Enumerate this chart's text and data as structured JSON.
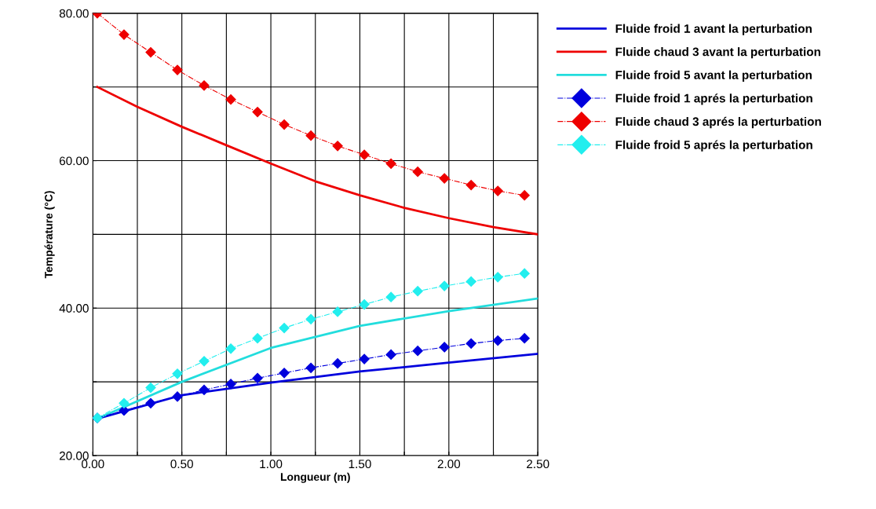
{
  "chart_data": {
    "type": "line",
    "xlabel": "Longueur (m)",
    "ylabel": "Température (°C)",
    "xlim": [
      0,
      2.5
    ],
    "ylim": [
      20,
      80
    ],
    "xticks": [
      {
        "value": 0,
        "label": "0.00"
      },
      {
        "value": 0.25,
        "label": null
      },
      {
        "value": 0.5,
        "label": "0.50"
      },
      {
        "value": 0.75,
        "label": null
      },
      {
        "value": 1.0,
        "label": "1.00"
      },
      {
        "value": 1.25,
        "label": null
      },
      {
        "value": 1.5,
        "label": "1.50"
      },
      {
        "value": 1.75,
        "label": null
      },
      {
        "value": 2.0,
        "label": "2.00"
      },
      {
        "value": 2.25,
        "label": null
      },
      {
        "value": 2.5,
        "label": "2.50"
      }
    ],
    "yticks": [
      {
        "value": 20,
        "label": "20.00"
      },
      {
        "value": 30,
        "label": null
      },
      {
        "value": 40,
        "label": "40.00"
      },
      {
        "value": 50,
        "label": null
      },
      {
        "value": 60,
        "label": "60.00"
      },
      {
        "value": 70,
        "label": null
      },
      {
        "value": 80,
        "label": "80.00"
      }
    ],
    "grid": true,
    "legend": "top right",
    "series": [
      {
        "name": "Fluide froid 1 avant la perturbation",
        "color": "#0000dd",
        "marker": "none",
        "line_style": "solid",
        "x": [
          0.025,
          0.5,
          1.0,
          1.5,
          2.0,
          2.5
        ],
        "values": [
          25.0,
          28.2,
          29.9,
          31.4,
          32.6,
          33.8
        ]
      },
      {
        "name": "Fluide chaud 3 avant la perturbation",
        "color": "#ee0000",
        "marker": "none",
        "line_style": "solid",
        "x": [
          0.025,
          0.25,
          0.5,
          0.75,
          1.0,
          1.25,
          1.5,
          1.75,
          2.0,
          2.25,
          2.5
        ],
        "values": [
          70.0,
          67.3,
          64.6,
          62.1,
          59.6,
          57.2,
          55.3,
          53.6,
          52.2,
          51.0,
          50.0
        ]
      },
      {
        "name": "Fluide froid 5 avant la perturbation",
        "color": "#22dddd",
        "marker": "none",
        "line_style": "solid",
        "x": [
          0.025,
          0.5,
          1.0,
          1.5,
          2.0,
          2.5
        ],
        "values": [
          25.0,
          30.0,
          34.6,
          37.6,
          39.6,
          41.3
        ]
      },
      {
        "name": "Fluide froid 1 aprés la perturbation",
        "color": "#0000dd",
        "marker": "diamond",
        "line_style": "dashdot",
        "x": [
          0.025,
          0.175,
          0.325,
          0.475,
          0.625,
          0.775,
          0.925,
          1.075,
          1.225,
          1.375,
          1.525,
          1.675,
          1.825,
          1.975,
          2.125,
          2.275,
          2.425
        ],
        "values": [
          25.1,
          26.1,
          27.1,
          28.0,
          28.9,
          29.7,
          30.5,
          31.2,
          31.9,
          32.5,
          33.1,
          33.7,
          34.2,
          34.7,
          35.2,
          35.6,
          35.9
        ]
      },
      {
        "name": "Fluide chaud 3 aprés la perturbation",
        "color": "#ee0000",
        "marker": "diamond",
        "line_style": "dashdot",
        "x": [
          0.025,
          0.175,
          0.325,
          0.475,
          0.625,
          0.775,
          0.925,
          1.075,
          1.225,
          1.375,
          1.525,
          1.675,
          1.825,
          1.975,
          2.125,
          2.275,
          2.425
        ],
        "values": [
          80.0,
          77.1,
          74.7,
          72.3,
          70.2,
          68.3,
          66.6,
          64.9,
          63.4,
          62.0,
          60.8,
          59.6,
          58.5,
          57.6,
          56.7,
          55.9,
          55.3
        ]
      },
      {
        "name": "Fluide froid 5 aprés la perturbation",
        "color": "#22eeee",
        "marker": "diamond",
        "line_style": "dashdot",
        "x": [
          0.025,
          0.175,
          0.325,
          0.475,
          0.625,
          0.775,
          0.925,
          1.075,
          1.225,
          1.375,
          1.525,
          1.675,
          1.825,
          1.975,
          2.125,
          2.275,
          2.425
        ],
        "values": [
          25.1,
          27.1,
          29.2,
          31.1,
          32.8,
          34.5,
          35.9,
          37.3,
          38.5,
          39.5,
          40.5,
          41.5,
          42.3,
          43.0,
          43.6,
          44.2,
          44.7
        ]
      }
    ]
  }
}
